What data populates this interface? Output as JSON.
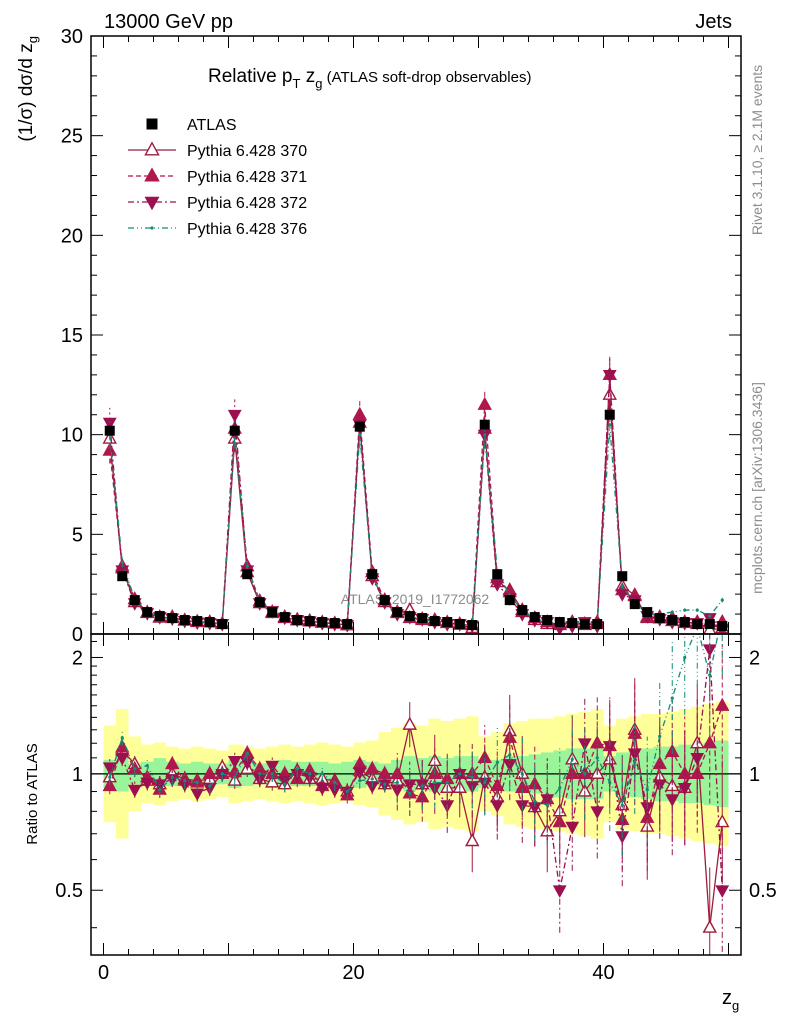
{
  "header": {
    "left": "13000 GeV pp",
    "right": "Jets"
  },
  "side_labels": {
    "rivet": "Rivet 3.1.10, ≥ 2.1M events",
    "mcplots": "mcplots.cern.ch [arXiv:1306.3436]"
  },
  "chart_data": [
    {
      "type": "line",
      "title_main": "Relative p",
      "title_sub1": "T",
      "title_mid": " z",
      "title_sub2": "g",
      "title_extra": " (ATLAS soft-drop observables)",
      "watermark": "ATLAS_2019_I1772062",
      "ylabel": "(1/σ) dσ/d z",
      "ylabel_sub": "g",
      "xlim": [
        -1,
        51
      ],
      "ylim": [
        0,
        30
      ],
      "yticks": [
        "0",
        "5",
        "10",
        "15",
        "20",
        "25",
        "30"
      ],
      "legend_position": "top-left",
      "x": [
        0.5,
        1.5,
        2.5,
        3.5,
        4.5,
        5.5,
        6.5,
        7.5,
        8.5,
        9.5,
        10.5,
        11.5,
        12.5,
        13.5,
        14.5,
        15.5,
        16.5,
        17.5,
        18.5,
        19.5,
        20.5,
        21.5,
        22.5,
        23.5,
        24.5,
        25.5,
        26.5,
        27.5,
        28.5,
        29.5,
        30.5,
        31.5,
        32.5,
        33.5,
        34.5,
        35.5,
        36.5,
        37.5,
        38.5,
        39.5,
        40.5,
        41.5,
        42.5,
        43.5,
        44.5,
        45.5,
        46.5,
        47.5,
        48.5,
        49.5
      ],
      "series": [
        {
          "name": "ATLAS",
          "color": "#000000",
          "values": [
            10.2,
            2.9,
            1.7,
            1.1,
            0.9,
            0.8,
            0.7,
            0.65,
            0.6,
            0.5,
            10.2,
            3.0,
            1.6,
            1.1,
            0.85,
            0.7,
            0.65,
            0.6,
            0.55,
            0.5,
            10.4,
            3.0,
            1.7,
            1.1,
            0.9,
            0.8,
            0.65,
            0.6,
            0.5,
            0.45,
            10.5,
            3.0,
            1.7,
            1.2,
            0.85,
            0.7,
            0.6,
            0.55,
            0.5,
            0.5,
            11.0,
            2.9,
            1.5,
            1.1,
            0.8,
            0.7,
            0.6,
            0.5,
            0.5,
            0.4
          ]
        },
        {
          "name": "Pythia 6.428 370",
          "color": "#9f1c3c",
          "values": [
            9.8,
            3.3,
            1.6,
            1.05,
            0.85,
            0.8,
            0.68,
            0.6,
            0.58,
            0.52,
            9.8,
            3.1,
            1.55,
            1.05,
            0.8,
            0.72,
            0.63,
            0.58,
            0.53,
            0.45,
            10.6,
            2.9,
            1.6,
            1.05,
            1.2,
            0.75,
            0.7,
            0.55,
            0.46,
            0.3,
            10.3,
            2.6,
            2.2,
            1.2,
            0.7,
            0.5,
            0.48,
            0.6,
            0.45,
            0.5,
            12.0,
            2.4,
            1.95,
            0.8,
            0.78,
            0.65,
            0.55,
            0.6,
            0.2,
            0.3
          ]
        },
        {
          "name": "Pythia 6.428 371",
          "color": "#b0174c",
          "values": [
            9.2,
            3.4,
            1.75,
            1.08,
            0.82,
            0.85,
            0.67,
            0.62,
            0.6,
            0.5,
            10.3,
            3.4,
            1.65,
            1.1,
            0.85,
            0.68,
            0.66,
            0.56,
            0.52,
            0.44,
            11.0,
            3.1,
            1.7,
            1.1,
            0.8,
            0.7,
            0.65,
            0.58,
            0.5,
            0.45,
            11.5,
            2.8,
            2.1,
            1.1,
            0.8,
            0.6,
            0.45,
            0.55,
            0.5,
            0.6,
            13.0,
            2.2,
            1.9,
            0.85,
            0.85,
            0.8,
            0.6,
            0.5,
            0.6,
            0.6
          ]
        },
        {
          "name": "Pythia 6.428 372",
          "color": "#9c1050",
          "values": [
            10.6,
            3.2,
            1.55,
            1.05,
            0.85,
            0.78,
            0.66,
            0.58,
            0.55,
            0.5,
            11.0,
            3.2,
            1.55,
            1.15,
            0.82,
            0.7,
            0.64,
            0.55,
            0.5,
            0.45,
            10.5,
            2.8,
            1.6,
            1.0,
            0.85,
            0.75,
            0.6,
            0.5,
            0.5,
            0.42,
            10.0,
            2.5,
            1.8,
            1.0,
            0.7,
            0.6,
            0.3,
            0.4,
            0.6,
            0.4,
            13.0,
            2.0,
            1.7,
            0.9,
            0.75,
            0.6,
            0.55,
            0.55,
            0.8,
            0.2
          ]
        },
        {
          "name": "Pythia 6.428 376",
          "color": "#138c74",
          "values": [
            10.0,
            3.6,
            1.75,
            1.15,
            0.82,
            0.78,
            0.67,
            0.62,
            0.56,
            0.5,
            10.0,
            3.4,
            1.6,
            1.1,
            0.8,
            0.72,
            0.65,
            0.6,
            0.52,
            0.45,
            10.0,
            2.9,
            1.6,
            1.05,
            0.8,
            0.74,
            0.62,
            0.57,
            0.5,
            0.44,
            10.0,
            3.2,
            1.9,
            1.2,
            0.72,
            0.58,
            0.55,
            0.6,
            0.5,
            0.55,
            10.5,
            2.4,
            1.6,
            1.0,
            1.0,
            1.1,
            1.2,
            1.2,
            0.9,
            1.7
          ]
        }
      ]
    },
    {
      "type": "line",
      "ylabel": "Ratio to ATLAS",
      "xlabel": "z",
      "xlabel_sub": "g",
      "xlim": [
        -1,
        51
      ],
      "ylim": [
        0.34,
        2.3
      ],
      "yticks_left": [
        "0.5",
        "1",
        "2"
      ],
      "yticks_right": [
        "0.5",
        "1",
        "2"
      ],
      "xticks": [
        "0",
        "20",
        "40"
      ],
      "band_inner": [
        0.92,
        0.9,
        0.94,
        0.93,
        0.91,
        0.93,
        0.94,
        0.93,
        0.94,
        0.94,
        0.92,
        0.93,
        0.94,
        0.93,
        0.92,
        0.93,
        0.93,
        0.93,
        0.94,
        0.93,
        0.92,
        0.93,
        0.94,
        0.92,
        0.9,
        0.91,
        0.9,
        0.91,
        0.9,
        0.9,
        0.92,
        0.92,
        0.9,
        0.9,
        0.89,
        0.88,
        0.87,
        0.86,
        0.86,
        0.86,
        0.9,
        0.88,
        0.87,
        0.86,
        0.85,
        0.85,
        0.84,
        0.84,
        0.83,
        0.82
      ],
      "band_outer": [
        0.75,
        0.68,
        0.8,
        0.84,
        0.83,
        0.85,
        0.86,
        0.85,
        0.86,
        0.87,
        0.84,
        0.85,
        0.86,
        0.85,
        0.84,
        0.85,
        0.84,
        0.83,
        0.84,
        0.85,
        0.83,
        0.82,
        0.78,
        0.76,
        0.74,
        0.75,
        0.72,
        0.73,
        0.72,
        0.71,
        0.8,
        0.78,
        0.74,
        0.73,
        0.72,
        0.72,
        0.71,
        0.7,
        0.69,
        0.68,
        0.75,
        0.72,
        0.71,
        0.7,
        0.7,
        0.69,
        0.68,
        0.67,
        0.66,
        0.65
      ],
      "series": [
        {
          "name": "Pythia 6.428 370",
          "values": [
            0.98,
            1.15,
            1.06,
            0.96,
            0.94,
            1.0,
            0.97,
            0.96,
            0.97,
            1.04,
            0.96,
            1.03,
            0.97,
            0.95,
            0.94,
            1.02,
            0.97,
            0.97,
            0.96,
            0.9,
            1.02,
            0.97,
            0.94,
            0.96,
            1.34,
            0.94,
            1.08,
            0.92,
            0.92,
            0.67,
            0.98,
            0.87,
            1.29,
            1.0,
            0.82,
            0.71,
            0.8,
            1.09,
            0.9,
            1.0,
            1.09,
            0.83,
            1.3,
            0.73,
            0.98,
            0.93,
            0.92,
            1.2,
            0.4,
            0.75
          ]
        },
        {
          "name": "Pythia 6.428 371",
          "values": [
            0.93,
            1.17,
            1.03,
            0.98,
            0.91,
            1.06,
            0.96,
            0.95,
            1.0,
            1.0,
            1.01,
            1.13,
            1.03,
            1.0,
            1.0,
            0.97,
            1.02,
            0.93,
            0.95,
            0.88,
            1.06,
            1.03,
            1.0,
            1.0,
            0.89,
            0.87,
            1.0,
            0.97,
            1.0,
            1.0,
            1.1,
            0.93,
            1.24,
            0.92,
            0.94,
            0.86,
            0.75,
            1.0,
            1.0,
            1.2,
            1.18,
            0.76,
            1.27,
            0.77,
            1.06,
            1.14,
            1.0,
            1.0,
            1.2,
            1.5
          ]
        },
        {
          "name": "Pythia 6.428 372",
          "values": [
            1.04,
            1.1,
            0.91,
            0.95,
            0.94,
            0.97,
            0.94,
            0.89,
            0.92,
            1.0,
            1.08,
            1.07,
            0.97,
            1.05,
            0.96,
            1.0,
            0.98,
            0.92,
            0.91,
            0.9,
            1.01,
            0.93,
            0.94,
            0.91,
            0.94,
            0.94,
            0.92,
            0.83,
            1.0,
            0.93,
            0.95,
            0.83,
            1.06,
            0.83,
            0.82,
            0.86,
            0.5,
            0.73,
            1.2,
            0.8,
            1.18,
            0.69,
            1.13,
            0.82,
            0.94,
            0.86,
            0.92,
            1.1,
            2.1,
            0.5
          ]
        },
        {
          "name": "Pythia 6.428 376",
          "values": [
            0.98,
            1.24,
            1.03,
            1.05,
            0.91,
            0.98,
            0.96,
            0.95,
            0.93,
            1.0,
            0.98,
            1.13,
            1.0,
            1.0,
            0.94,
            1.03,
            1.0,
            1.0,
            0.95,
            0.9,
            0.96,
            0.97,
            0.94,
            0.95,
            0.89,
            0.93,
            0.95,
            0.95,
            1.0,
            0.98,
            0.95,
            1.07,
            1.12,
            1.0,
            0.85,
            0.83,
            0.92,
            1.09,
            1.0,
            1.1,
            0.95,
            0.83,
            1.07,
            0.91,
            1.25,
            1.57,
            2.0,
            2.4,
            1.8,
            2.6
          ]
        }
      ]
    }
  ]
}
